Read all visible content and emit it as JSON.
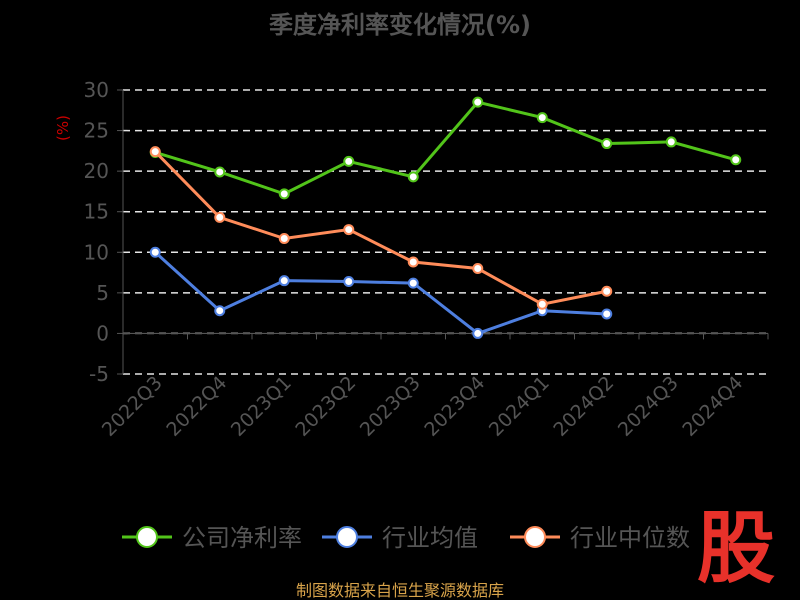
{
  "chart_data": {
    "type": "line",
    "title": "季度净利率变化情况(%)",
    "ylabel": "(%)",
    "categories": [
      "2022Q3",
      "2022Q4",
      "2023Q1",
      "2023Q2",
      "2023Q3",
      "2023Q4",
      "2024Q1",
      "2024Q2",
      "2024Q3",
      "2024Q4"
    ],
    "ylim": [
      -5,
      30
    ],
    "yticks": [
      30,
      25,
      20,
      15,
      10,
      5,
      0,
      -5
    ],
    "grid": true,
    "legend_position": "bottom",
    "series": [
      {
        "name": "公司净利率",
        "color": "#52c41a",
        "values": [
          22.3,
          19.9,
          17.2,
          21.2,
          19.3,
          28.5,
          26.6,
          23.4,
          23.6,
          21.4
        ]
      },
      {
        "name": "行业均值",
        "color": "#4e7fe0",
        "values": [
          10.0,
          2.8,
          6.5,
          6.4,
          6.2,
          0.0,
          2.8,
          2.4,
          null,
          null
        ]
      },
      {
        "name": "行业中位数",
        "color": "#ff8c5a",
        "values": [
          22.4,
          14.3,
          11.7,
          12.8,
          8.8,
          8.0,
          3.6,
          5.2,
          null,
          null
        ]
      }
    ]
  },
  "footer": {
    "source": "制图数据来自恒生聚源数据库"
  },
  "logo": {
    "text": "股"
  }
}
